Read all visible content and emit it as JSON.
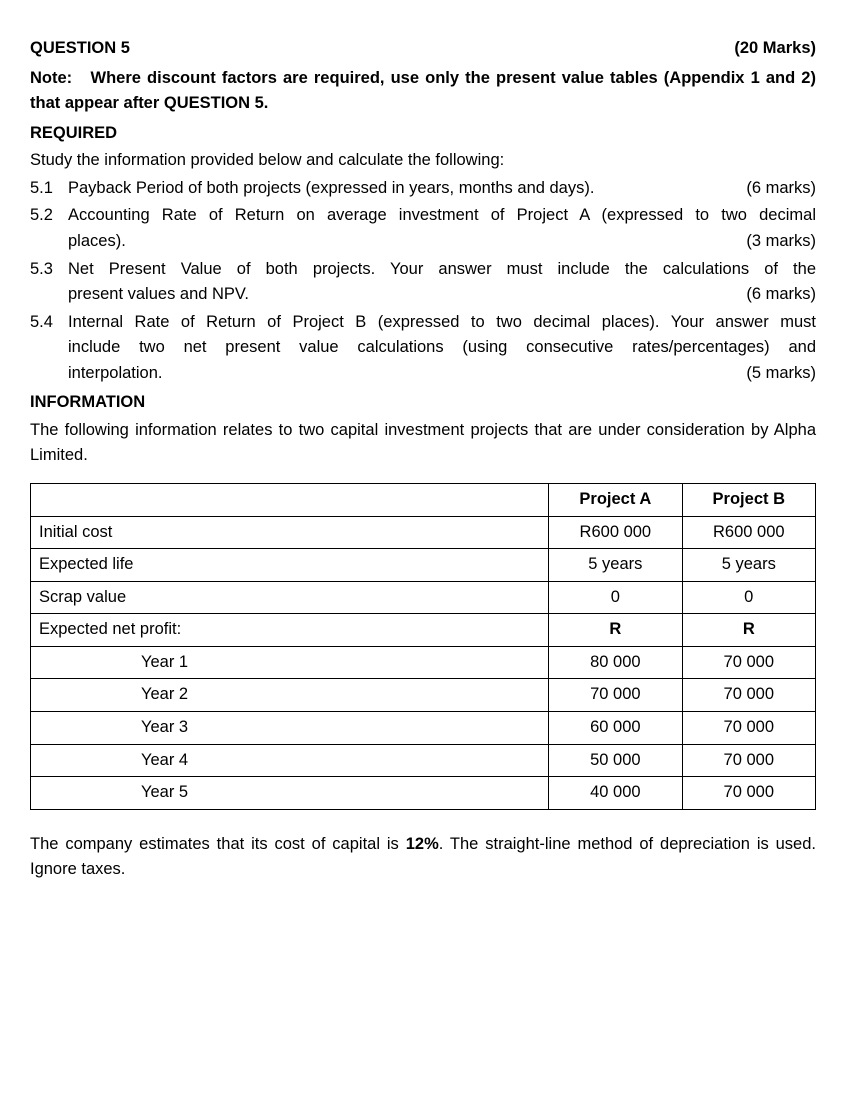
{
  "header": {
    "question": "QUESTION 5",
    "marks": "(20 Marks)"
  },
  "note_label": "Note:",
  "note_body": "Where discount factors are required, use only the present value tables (Appendix 1 and 2) that appear after QUESTION 5.",
  "required_label": "REQUIRED",
  "intro": "Study the information provided below and calculate the following:",
  "items": [
    {
      "num": "5.1",
      "lines": [
        {
          "text": "Payback Period of both projects (expressed in years, months and days).",
          "marks": "(6 marks)",
          "justify": false
        }
      ]
    },
    {
      "num": "5.2",
      "lines": [
        {
          "text": "Accounting Rate of Return on average investment of Project A (expressed to two decimal",
          "marks": "",
          "justify": true
        },
        {
          "text": "places).",
          "marks": "(3 marks)",
          "justify": false
        }
      ]
    },
    {
      "num": "5.3",
      "lines": [
        {
          "text": "Net Present Value of both projects.  Your answer must include the calculations of the",
          "marks": "",
          "justify": true
        },
        {
          "text": "present values and NPV.",
          "marks": "(6 marks)",
          "justify": false
        }
      ]
    },
    {
      "num": "5.4",
      "lines": [
        {
          "text": "Internal Rate of Return of Project B (expressed to two decimal places).  Your answer must",
          "marks": "",
          "justify": true
        },
        {
          "text": "include two net present value calculations (using consecutive rates/percentages) and",
          "marks": "",
          "justify": true
        },
        {
          "text": "interpolation.",
          "marks": "(5 marks)",
          "justify": false
        }
      ]
    }
  ],
  "info_label": "INFORMATION",
  "info_text": "The following information relates to two capital investment projects that are under consideration by Alpha Limited.",
  "table": {
    "col_widths": [
      "66%",
      "17%",
      "17%"
    ],
    "headers": [
      "",
      "Project A",
      "Project B"
    ],
    "rows": [
      {
        "label": "Initial cost",
        "a": "R600 000",
        "b": "R600 000",
        "indent": false
      },
      {
        "label": "Expected life",
        "a": "5 years",
        "b": "5 years",
        "indent": false
      },
      {
        "label": "Scrap value",
        "a": "0",
        "b": "0",
        "indent": false
      },
      {
        "label": "Expected net profit:",
        "a": "R",
        "b": "R",
        "indent": false,
        "bold_vals": true
      },
      {
        "label": "Year 1",
        "a": "80 000",
        "b": "70 000",
        "indent": true
      },
      {
        "label": "Year 2",
        "a": "70 000",
        "b": "70 000",
        "indent": true
      },
      {
        "label": "Year 3",
        "a": "60 000",
        "b": "70 000",
        "indent": true
      },
      {
        "label": "Year 4",
        "a": "50 000",
        "b": "70 000",
        "indent": true
      },
      {
        "label": "Year 5",
        "a": "40 000",
        "b": "70 000",
        "indent": true
      }
    ]
  },
  "footer": {
    "pre": "The company estimates that its cost of capital is ",
    "bold": "12%",
    "post": ".  The straight-line method of depreciation is used. Ignore taxes."
  }
}
